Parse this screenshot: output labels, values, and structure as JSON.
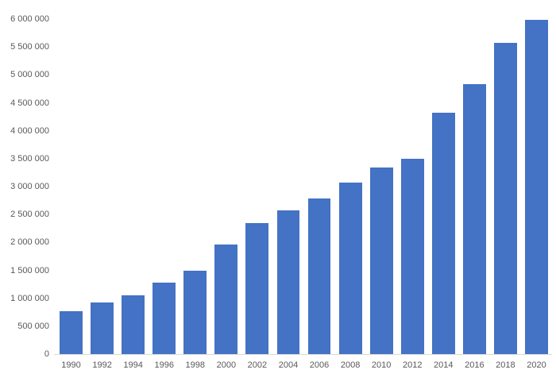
{
  "chart_data": {
    "type": "bar",
    "title": "",
    "xlabel": "",
    "ylabel": "",
    "categories": [
      "1990",
      "1992",
      "1994",
      "1996",
      "1998",
      "2000",
      "2002",
      "2004",
      "2006",
      "2008",
      "2010",
      "2012",
      "2014",
      "2016",
      "2018",
      "2020"
    ],
    "values": [
      770000,
      920000,
      1050000,
      1280000,
      1500000,
      1960000,
      2340000,
      2570000,
      2780000,
      3070000,
      3340000,
      3500000,
      4320000,
      4840000,
      5580000,
      5990000
    ],
    "ylim": [
      0,
      6000000
    ],
    "ytick_interval": 500000,
    "ytick_values": [
      6000000,
      5500000,
      5000000,
      4500000,
      4000000,
      3500000,
      3000000,
      2500000,
      2000000,
      1500000,
      1000000,
      500000,
      0
    ],
    "ytick_labels": [
      "6 000 000",
      "5 500 000",
      "5 000 000",
      "4 500 000",
      "4 000 000",
      "3 500 000",
      "3 000 000",
      "2 500 000",
      "2 000 000",
      "1 500 000",
      "1 000 000",
      "500 000",
      "0"
    ],
    "grid": "off",
    "legend": "none",
    "bar_color": "#4472C4",
    "axis_line_color": "#d9d9d9",
    "label_color": "#595959"
  }
}
